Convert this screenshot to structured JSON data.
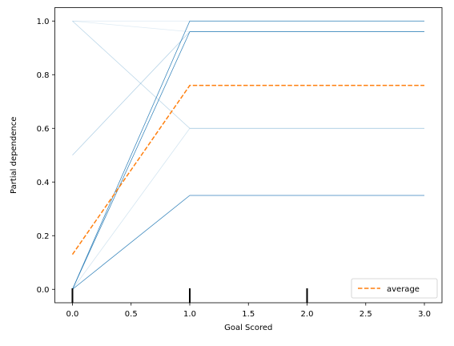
{
  "chart_data": {
    "type": "line",
    "xlabel": "Goal Scored",
    "ylabel": "Partial dependence",
    "xlim": [
      -0.15,
      3.15
    ],
    "ylim": [
      -0.05,
      1.05
    ],
    "xticks": [
      0.0,
      0.5,
      1.0,
      1.5,
      2.0,
      2.5,
      3.0
    ],
    "xtick_labels": [
      "0.0",
      "0.5",
      "1.0",
      "1.5",
      "2.0",
      "2.5",
      "3.0"
    ],
    "yticks": [
      0.0,
      0.2,
      0.4,
      0.6,
      0.8,
      1.0
    ],
    "ytick_labels": [
      "0.0",
      "0.2",
      "0.4",
      "0.6",
      "0.8",
      "1.0"
    ],
    "x": [
      0,
      1,
      2,
      3
    ],
    "ice_color": "#1f77b4",
    "average_color": "#ff7f0e",
    "legend_position": "lower-right",
    "ice_lines": [
      {
        "values": [
          0.0,
          1.0,
          1.0,
          1.0
        ],
        "opacity": 0.9
      },
      {
        "values": [
          0.0,
          0.96,
          0.96,
          0.96
        ],
        "opacity": 0.9
      },
      {
        "values": [
          0.0,
          0.35,
          0.35,
          0.35
        ],
        "opacity": 0.9
      },
      {
        "values": [
          0.5,
          0.96,
          0.96,
          0.96
        ],
        "opacity": 0.35
      },
      {
        "values": [
          1.0,
          0.6,
          0.6,
          0.6
        ],
        "opacity": 0.3
      },
      {
        "values": [
          0.0,
          0.6,
          0.6,
          0.6
        ],
        "opacity": 0.2
      },
      {
        "values": [
          1.0,
          0.96,
          0.96,
          0.96
        ],
        "opacity": 0.15
      },
      {
        "values": [
          1.0,
          1.0,
          1.0,
          1.0
        ],
        "opacity": 0.15
      }
    ],
    "average": {
      "name": "average",
      "values": [
        0.13,
        0.76,
        0.76,
        0.76
      ]
    },
    "rug_x": [
      0,
      1,
      2
    ]
  }
}
